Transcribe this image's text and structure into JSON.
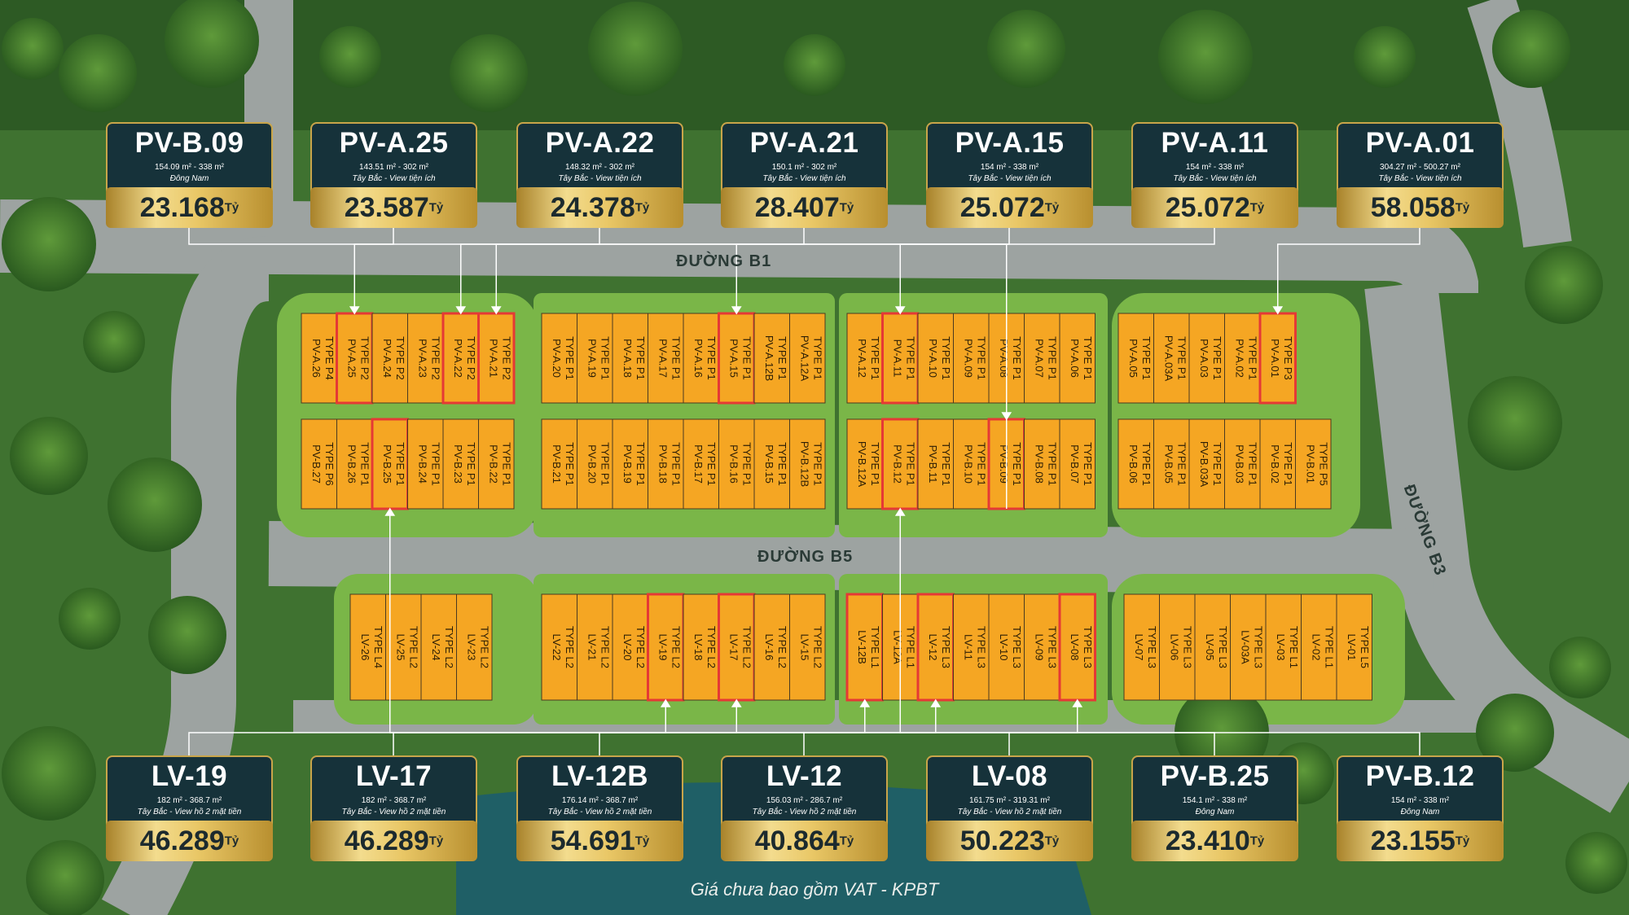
{
  "roads": {
    "b1": "ĐƯỜNG B1",
    "b5": "ĐƯỜNG B5",
    "b3": "ĐƯỜNG B3"
  },
  "footer": "Giá chưa bao gồm VAT - KPBT",
  "currency": "Tỷ",
  "colors": {
    "plot": "#f5a623",
    "highlight": "#e53935",
    "card_bg": "#16323a",
    "gold": "#e9c766"
  },
  "cards_top": [
    {
      "code": "PV-B.09",
      "area": "154.09 m² - 338 m²",
      "view": "Đông Nam",
      "price": "23.168"
    },
    {
      "code": "PV-A.25",
      "area": "143.51 m² - 302 m²",
      "view": "Tây Bắc - View tiện ích",
      "price": "23.587"
    },
    {
      "code": "PV-A.22",
      "area": "148.32 m² - 302 m²",
      "view": "Tây Bắc - View tiện ích",
      "price": "24.378"
    },
    {
      "code": "PV-A.21",
      "area": "150.1 m² - 302 m²",
      "view": "Tây Bắc - View tiện ích",
      "price": "28.407"
    },
    {
      "code": "PV-A.15",
      "area": "154 m² - 338 m²",
      "view": "Tây Bắc - View tiện ích",
      "price": "25.072"
    },
    {
      "code": "PV-A.11",
      "area": "154 m² - 338 m²",
      "view": "Tây Bắc - View tiện ích",
      "price": "25.072"
    },
    {
      "code": "PV-A.01",
      "area": "304.27 m² - 500.27 m²",
      "view": "Tây Bắc - View tiện ích",
      "price": "58.058"
    }
  ],
  "cards_bottom": [
    {
      "code": "LV-19",
      "area": "182 m² - 368.7 m²",
      "view": "Tây Bắc - View hồ 2 mặt tiền",
      "price": "46.289"
    },
    {
      "code": "LV-17",
      "area": "182 m² - 368.7 m²",
      "view": "Tây Bắc - View hồ 2 mặt tiền",
      "price": "46.289"
    },
    {
      "code": "LV-12B",
      "area": "176.14 m² - 368.7 m²",
      "view": "Tây Bắc - View hồ 2 mặt tiền",
      "price": "54.691"
    },
    {
      "code": "LV-12",
      "area": "156.03 m² - 286.7 m²",
      "view": "Tây Bắc - View hồ 2 mặt tiền",
      "price": "40.864"
    },
    {
      "code": "LV-08",
      "area": "161.75 m² - 319.31 m²",
      "view": "Tây Bắc - View hồ 2 mặt tiền",
      "price": "50.223"
    },
    {
      "code": "PV-B.25",
      "area": "154.1 m² - 338 m²",
      "view": "Đông Nam",
      "price": "23.410"
    },
    {
      "code": "PV-B.12",
      "area": "154 m² - 338 m²",
      "view": "Đông Nam",
      "price": "23.155"
    }
  ],
  "rows": [
    {
      "id": "A",
      "groups": [
        {
          "plots": [
            {
              "name": "PV-A.26",
              "type": "TYPE P4",
              "hl": false
            },
            {
              "name": "PV-A.25",
              "type": "TYPE P2",
              "hl": true
            },
            {
              "name": "PV-A.24",
              "type": "TYPE P2",
              "hl": false
            },
            {
              "name": "PV-A.23",
              "type": "TYPE P2",
              "hl": false
            },
            {
              "name": "PV-A.22",
              "type": "TYPE P2",
              "hl": true
            },
            {
              "name": "PV-A.21",
              "type": "TYPE P2",
              "hl": true
            }
          ]
        },
        {
          "plots": [
            {
              "name": "PV-A.20",
              "type": "TYPE P1",
              "hl": false
            },
            {
              "name": "PV-A.19",
              "type": "TYPE P1",
              "hl": false
            },
            {
              "name": "PV-A.18",
              "type": "TYPE P1",
              "hl": false
            },
            {
              "name": "PV-A.17",
              "type": "TYPE P1",
              "hl": false
            },
            {
              "name": "PV-A.16",
              "type": "TYPE P1",
              "hl": false
            },
            {
              "name": "PV-A.15",
              "type": "TYPE P1",
              "hl": true
            },
            {
              "name": "PV-A.12B",
              "type": "TYPE P1",
              "hl": false
            },
            {
              "name": "PV-A.12A",
              "type": "TYPE P1",
              "hl": false
            }
          ]
        },
        {
          "plots": [
            {
              "name": "PV-A.12",
              "type": "TYPE P1",
              "hl": false
            },
            {
              "name": "PV-A.11",
              "type": "TYPE P1",
              "hl": true
            },
            {
              "name": "PV-A.10",
              "type": "TYPE P1",
              "hl": false
            },
            {
              "name": "PV-A.09",
              "type": "TYPE P1",
              "hl": false
            },
            {
              "name": "PV-A.08",
              "type": "TYPE P1",
              "hl": false
            },
            {
              "name": "PV-A.07",
              "type": "TYPE P1",
              "hl": false
            },
            {
              "name": "PV-A.06",
              "type": "TYPE P1",
              "hl": false
            }
          ]
        },
        {
          "plots": [
            {
              "name": "PV-A.05",
              "type": "TYPE P1",
              "hl": false
            },
            {
              "name": "PV-A.03A",
              "type": "TYPE P1",
              "hl": false
            },
            {
              "name": "PV-A.03",
              "type": "TYPE P1",
              "hl": false
            },
            {
              "name": "PV-A.02",
              "type": "TYPE P1",
              "hl": false
            },
            {
              "name": "PV-A.01",
              "type": "TYPE P3",
              "hl": true
            }
          ]
        }
      ]
    },
    {
      "id": "B",
      "groups": [
        {
          "plots": [
            {
              "name": "PV-B.27",
              "type": "TYPE P6",
              "hl": false
            },
            {
              "name": "PV-B.26",
              "type": "TYPE P1",
              "hl": false
            },
            {
              "name": "PV-B.25",
              "type": "TYPE P1",
              "hl": true
            },
            {
              "name": "PV-B.24",
              "type": "TYPE P1",
              "hl": false
            },
            {
              "name": "PV-B.23",
              "type": "TYPE P1",
              "hl": false
            },
            {
              "name": "PV-B.22",
              "type": "TYPE P1",
              "hl": false
            }
          ]
        },
        {
          "plots": [
            {
              "name": "PV-B.21",
              "type": "TYPE P1",
              "hl": false
            },
            {
              "name": "PV-B.20",
              "type": "TYPE P1",
              "hl": false
            },
            {
              "name": "PV-B.19",
              "type": "TYPE P1",
              "hl": false
            },
            {
              "name": "PV-B.18",
              "type": "TYPE P1",
              "hl": false
            },
            {
              "name": "PV-B.17",
              "type": "TYPE P1",
              "hl": false
            },
            {
              "name": "PV-B.16",
              "type": "TYPE P1",
              "hl": false
            },
            {
              "name": "PV-B.15",
              "type": "TYPE P1",
              "hl": false
            },
            {
              "name": "PV-B.12B",
              "type": "TYPE P1",
              "hl": false
            }
          ]
        },
        {
          "plots": [
            {
              "name": "PV-B.12A",
              "type": "TYPE P1",
              "hl": false
            },
            {
              "name": "PV-B.12",
              "type": "TYPE P1",
              "hl": true
            },
            {
              "name": "PV-B.11",
              "type": "TYPE P1",
              "hl": false
            },
            {
              "name": "PV-B.10",
              "type": "TYPE P1",
              "hl": false
            },
            {
              "name": "PV-B.09",
              "type": "TYPE P1",
              "hl": true
            },
            {
              "name": "PV-B.08",
              "type": "TYPE P1",
              "hl": false
            },
            {
              "name": "PV-B.07",
              "type": "TYPE P1",
              "hl": false
            }
          ]
        },
        {
          "plots": [
            {
              "name": "PV-B.06",
              "type": "TYPE P1",
              "hl": false
            },
            {
              "name": "PV-B.05",
              "type": "TYPE P1",
              "hl": false
            },
            {
              "name": "PV-B.03A",
              "type": "TYPE P1",
              "hl": false
            },
            {
              "name": "PV-B.03",
              "type": "TYPE P1",
              "hl": false
            },
            {
              "name": "PV-B.02",
              "type": "TYPE P1",
              "hl": false
            },
            {
              "name": "PV-B.01",
              "type": "TYPE P5",
              "hl": false
            }
          ]
        }
      ]
    },
    {
      "id": "LV",
      "groups": [
        {
          "plots": [
            {
              "name": "LV-26",
              "type": "TYPE L4",
              "hl": false
            },
            {
              "name": "LV-25",
              "type": "TYPE L2",
              "hl": false
            },
            {
              "name": "LV-24",
              "type": "TYPE L2",
              "hl": false
            },
            {
              "name": "LV-23",
              "type": "TYPE L2",
              "hl": false
            }
          ]
        },
        {
          "plots": [
            {
              "name": "LV-22",
              "type": "TYPE L2",
              "hl": false
            },
            {
              "name": "LV-21",
              "type": "TYPE L2",
              "hl": false
            },
            {
              "name": "LV-20",
              "type": "TYPE L2",
              "hl": false
            },
            {
              "name": "LV-19",
              "type": "TYPE L2",
              "hl": true
            },
            {
              "name": "LV-18",
              "type": "TYPE L2",
              "hl": false
            },
            {
              "name": "LV-17",
              "type": "TYPE L2",
              "hl": true
            },
            {
              "name": "LV-16",
              "type": "TYPE L2",
              "hl": false
            },
            {
              "name": "LV-15",
              "type": "TYPE L2",
              "hl": false
            }
          ]
        },
        {
          "plots": [
            {
              "name": "LV-12B",
              "type": "TYPE L1",
              "hl": true
            },
            {
              "name": "LV-12A",
              "type": "TYPE L1",
              "hl": false
            },
            {
              "name": "LV-12",
              "type": "TYPE L3",
              "hl": true
            },
            {
              "name": "LV-11",
              "type": "TYPE L3",
              "hl": false
            },
            {
              "name": "LV-10",
              "type": "TYPE L3",
              "hl": false
            },
            {
              "name": "LV-09",
              "type": "TYPE L3",
              "hl": false
            },
            {
              "name": "LV-08",
              "type": "TYPE L3",
              "hl": true
            }
          ]
        },
        {
          "plots": [
            {
              "name": "LV-07",
              "type": "TYPE L3",
              "hl": false
            },
            {
              "name": "LV-06",
              "type": "TYPE L3",
              "hl": false
            },
            {
              "name": "LV-05",
              "type": "TYPE L3",
              "hl": false
            },
            {
              "name": "LV-03A",
              "type": "TYPE L3",
              "hl": false
            },
            {
              "name": "LV-03",
              "type": "TYPE L1",
              "hl": false
            },
            {
              "name": "LV-02",
              "type": "TYPE L1",
              "hl": false
            },
            {
              "name": "LV-01",
              "type": "TYPE L5",
              "hl": false
            }
          ]
        }
      ]
    }
  ]
}
